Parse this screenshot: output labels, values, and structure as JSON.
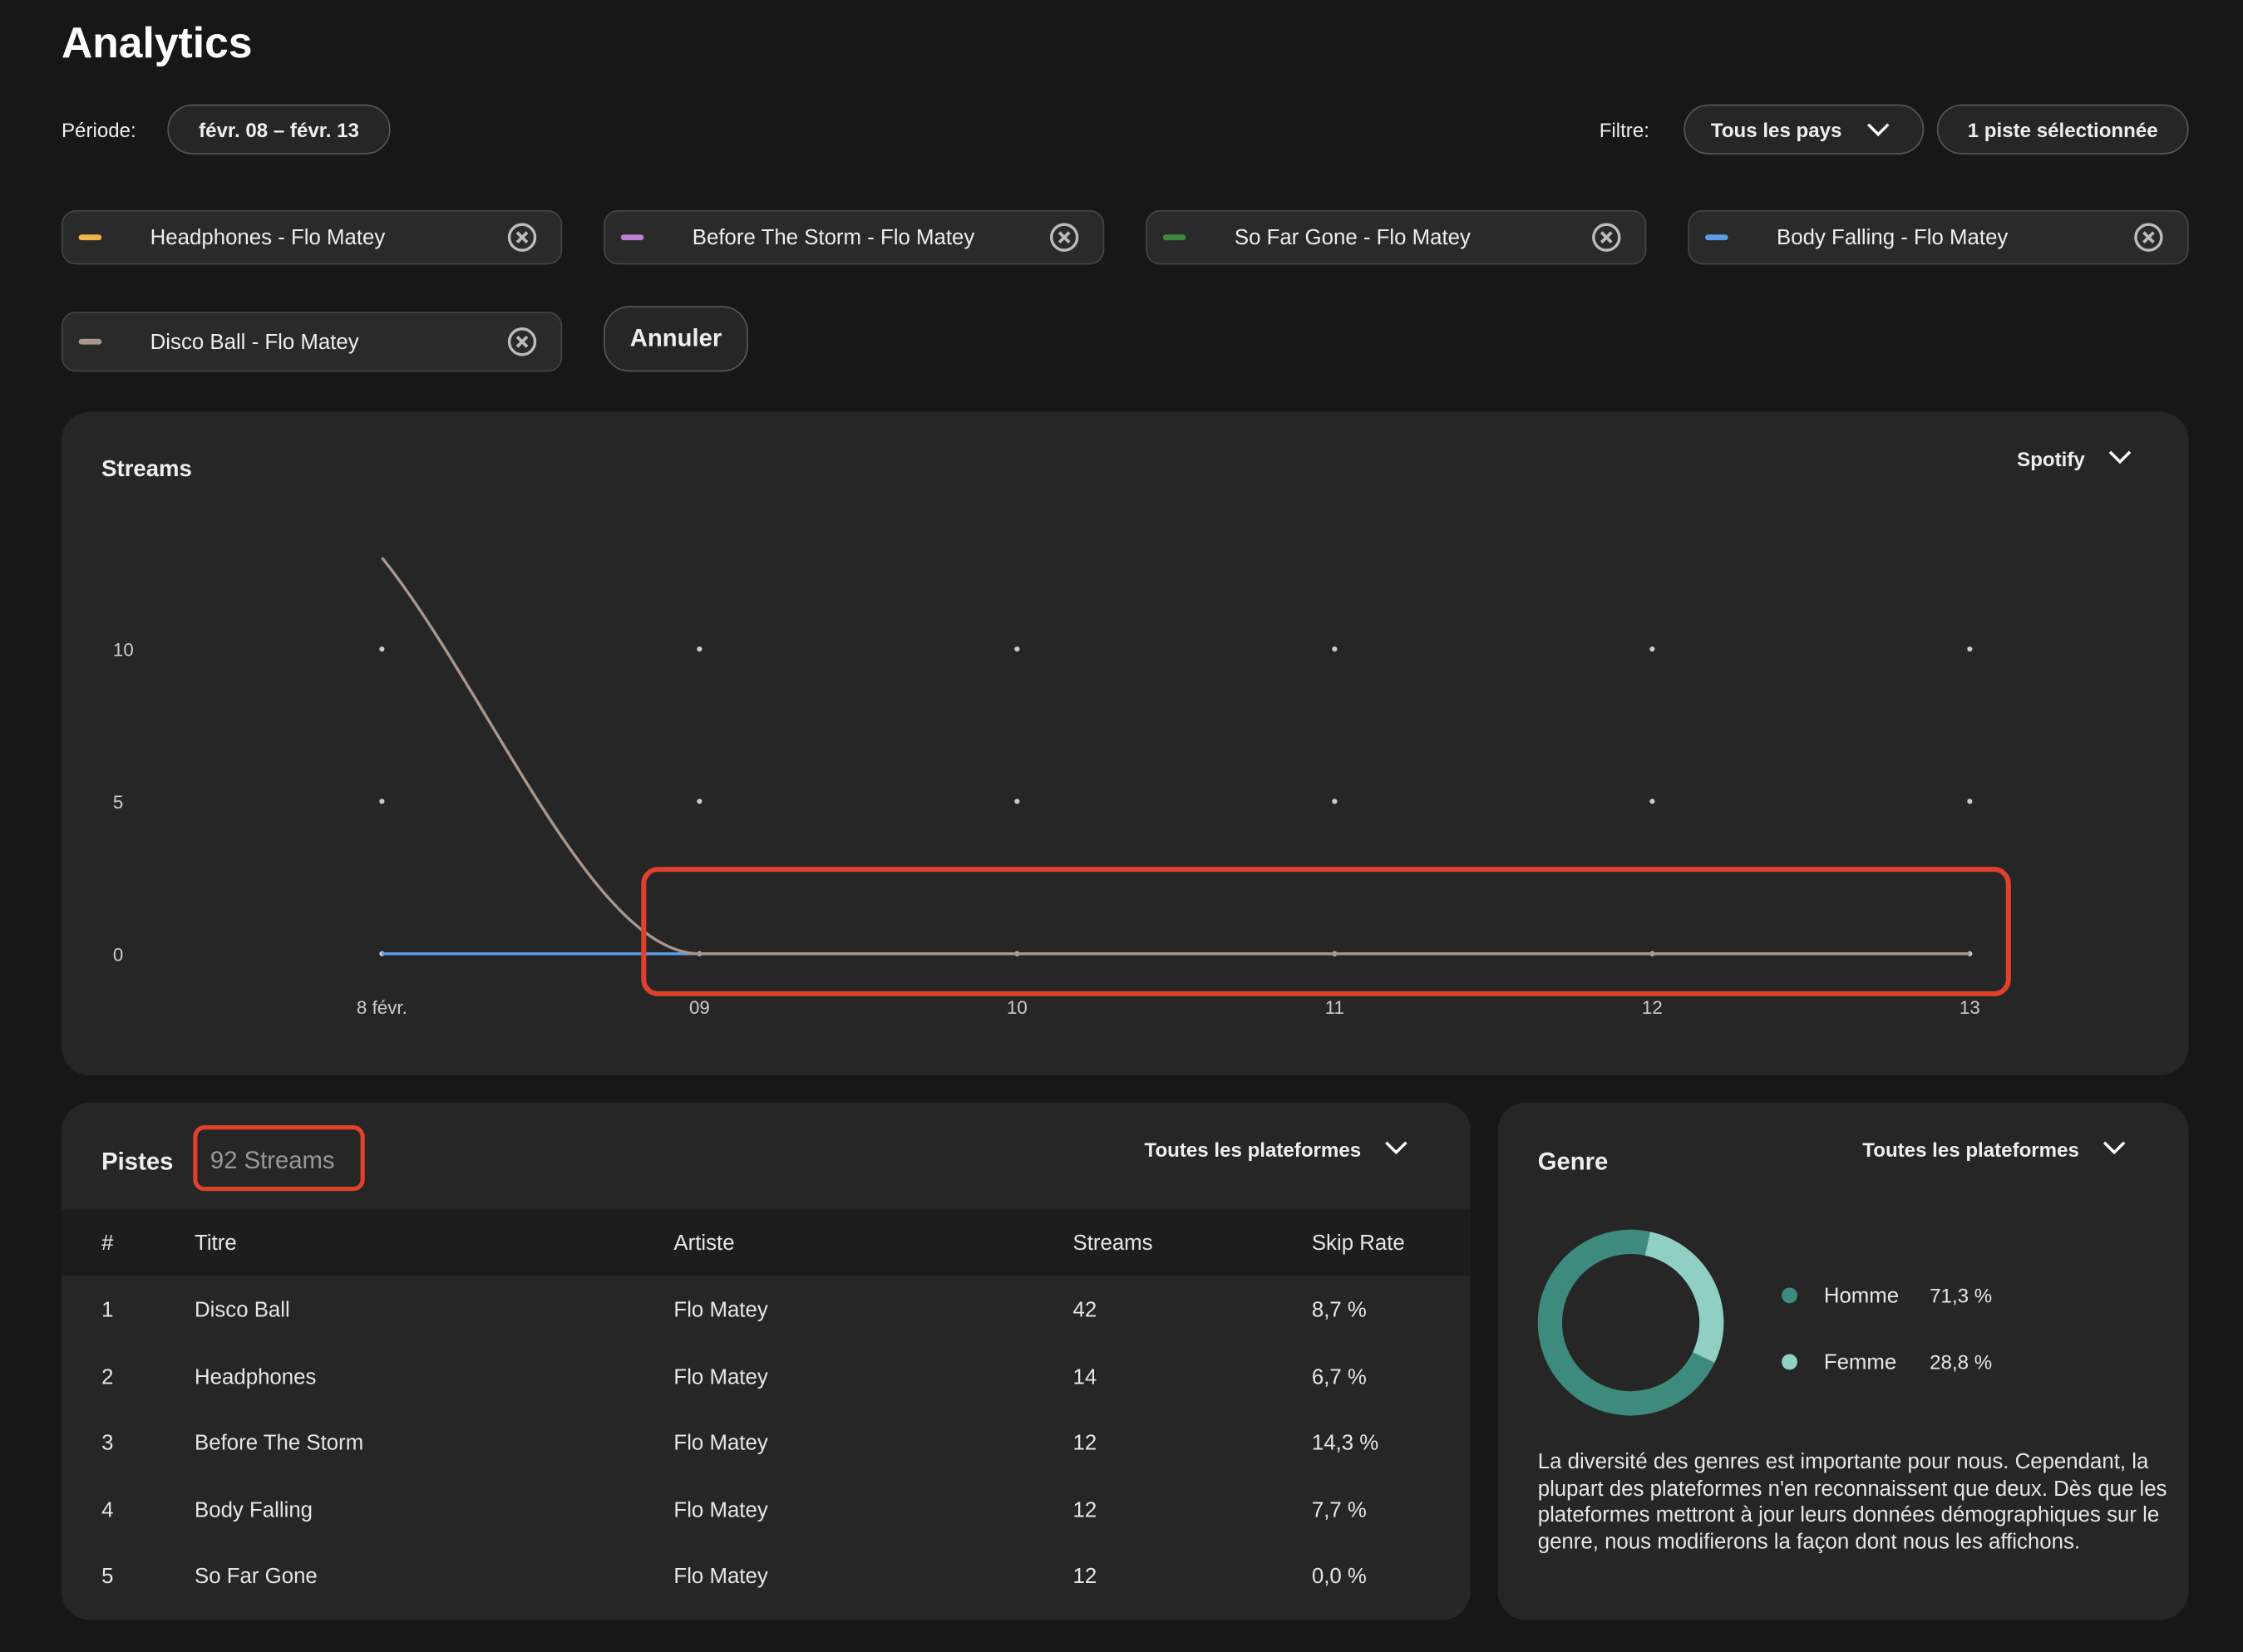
{
  "header": {
    "title": "Analytics",
    "period_label": "Période:",
    "period": "févr. 08 – févr. 13",
    "filter_label": "Filtre:",
    "country_filter": "Tous les pays",
    "track_filter": "1 piste sélectionnée",
    "cancel": "Annuler"
  },
  "chart_data": [
    {
      "type": "line",
      "title": "Streams",
      "platform": "Spotify",
      "categories": [
        "8 févr.",
        "09",
        "10",
        "11",
        "12",
        "13"
      ],
      "series": [
        {
          "name": "Headphones - Flo Matey",
          "color": "#f0b34a",
          "values": [
            0,
            0,
            0,
            0,
            0,
            0
          ]
        },
        {
          "name": "Before The Storm - Flo Matey",
          "color": "#c07fd0",
          "values": [
            0,
            0,
            0,
            0,
            0,
            0
          ]
        },
        {
          "name": "So Far Gone - Flo Matey",
          "color": "#3e8a3e",
          "values": [
            0,
            0,
            0,
            0,
            0,
            0
          ]
        },
        {
          "name": "Body Falling - Flo Matey",
          "color": "#5a9de6",
          "values": [
            0,
            0,
            0,
            0,
            0,
            0
          ]
        },
        {
          "name": "Disco Ball - Flo Matey",
          "color": "#a8968c",
          "values": [
            13,
            0,
            0,
            0,
            0,
            0
          ]
        }
      ],
      "ylim": [
        0,
        13
      ],
      "yticks": [
        0,
        5,
        10
      ],
      "grid": true
    },
    {
      "type": "donut",
      "title": "Genre",
      "platform": "Toutes les plateformes",
      "categories": [
        "Homme",
        "Femme"
      ],
      "values": [
        71.3,
        28.8
      ],
      "value_labels": [
        "71,3 %",
        "28,8 %"
      ],
      "colors": [
        "#3d8b7d",
        "#8fcfc4"
      ],
      "note": "La diversité des genres est importante pour nous. Cependant, la plupart des plateformes n'en reconnaissent que deux. Dès que les plateformes mettront à jour leurs données démographiques sur le genre, nous modifierons la façon dont nous les affichons."
    }
  ],
  "tracks": {
    "title": "Pistes",
    "total": "92 Streams",
    "platform": "Toutes les plateformes",
    "columns": [
      "#",
      "Titre",
      "Artiste",
      "Streams",
      "Skip Rate"
    ],
    "rows": [
      [
        "1",
        "Disco Ball",
        "Flo Matey",
        "42",
        "8,7 %"
      ],
      [
        "2",
        "Headphones",
        "Flo Matey",
        "14",
        "6,7 %"
      ],
      [
        "3",
        "Before The Storm",
        "Flo Matey",
        "12",
        "14,3 %"
      ],
      [
        "4",
        "Body Falling",
        "Flo Matey",
        "12",
        "7,7 %"
      ],
      [
        "5",
        "So Far Gone",
        "Flo Matey",
        "12",
        "0,0 %"
      ]
    ]
  }
}
